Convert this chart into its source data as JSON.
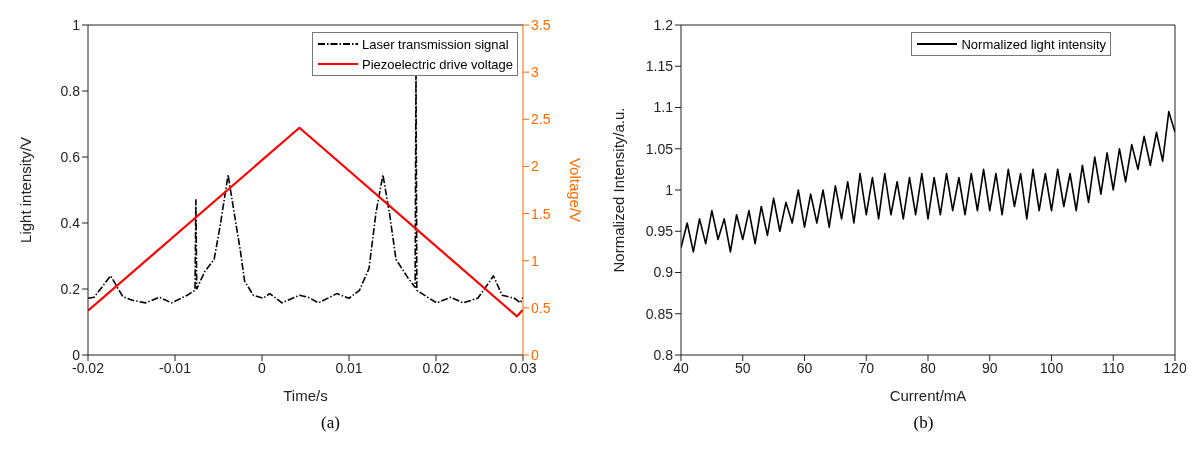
{
  "chart_data": [
    {
      "type": "line",
      "xlabel": "Time/s",
      "ylabel": "Light intensity/V",
      "y2label": "Voltage/V",
      "annotations": [
        "(a)"
      ],
      "xlim": [
        -0.02,
        0.03
      ],
      "xticks": [
        -0.02,
        -0.01,
        0,
        0.01,
        0.02,
        0.03
      ],
      "ylim": [
        0,
        1
      ],
      "yticks": [
        0,
        0.2,
        0.4,
        0.6,
        0.8,
        1
      ],
      "y2lim": [
        0,
        3.5
      ],
      "y2ticks": [
        0,
        0.5,
        1,
        1.5,
        2,
        2.5,
        3,
        3.5
      ],
      "grid": false,
      "legend": "top right",
      "series": [
        {
          "name": "Laser transmission signal",
          "color": "#000000",
          "line_style": "dashed",
          "x": [
            -0.02,
            -0.0193,
            -0.0174,
            -0.016,
            -0.0149,
            -0.0134,
            -0.0118,
            -0.0104,
            -0.0086,
            -0.0077,
            -0.0076,
            -0.0075,
            -0.0066,
            -0.0055,
            -0.0048,
            -0.0039,
            -0.0032,
            -0.0025,
            -0.002,
            -0.001,
            0.0001,
            0.0009,
            0.0023,
            0.0043,
            0.0053,
            0.0065,
            0.0086,
            0.01,
            0.0112,
            0.0123,
            0.0131,
            0.0139,
            0.0147,
            0.0154,
            0.0168,
            0.0176,
            0.0177,
            0.0178,
            0.0192,
            0.0201,
            0.0217,
            0.0231,
            0.0248,
            0.0257,
            0.0266,
            0.0276,
            0.029,
            0.0297,
            0.03
          ],
          "values": [
            0.172,
            0.175,
            0.24,
            0.177,
            0.166,
            0.158,
            0.175,
            0.158,
            0.181,
            0.196,
            0.47,
            0.2,
            0.252,
            0.29,
            0.393,
            0.546,
            0.431,
            0.318,
            0.224,
            0.181,
            0.172,
            0.186,
            0.158,
            0.181,
            0.175,
            0.158,
            0.186,
            0.172,
            0.196,
            0.262,
            0.431,
            0.546,
            0.421,
            0.29,
            0.233,
            0.205,
            0.85,
            0.196,
            0.172,
            0.158,
            0.175,
            0.158,
            0.172,
            0.205,
            0.24,
            0.181,
            0.172,
            0.158,
            0.175
          ]
        },
        {
          "name": "Piezoelectric drive voltage",
          "color": "#ff0000",
          "line_style": "solid",
          "axis": "y2",
          "x": [
            -0.02,
            0.0043,
            0.0293,
            0.03
          ],
          "values": [
            0.47,
            2.41,
            0.41,
            0.48
          ]
        }
      ]
    },
    {
      "type": "line",
      "xlabel": "Current/mA",
      "ylabel": "Normalized Intensity/a.u.",
      "annotations": [
        "(b)"
      ],
      "xlim": [
        40,
        120
      ],
      "xticks": [
        40,
        50,
        60,
        70,
        80,
        90,
        100,
        110,
        120
      ],
      "ylim": [
        0.8,
        1.2
      ],
      "yticks": [
        0.8,
        0.85,
        0.9,
        0.95,
        1,
        1.05,
        1.1,
        1.15,
        1.2
      ],
      "grid": false,
      "legend": "top right",
      "series": [
        {
          "name": "Normalized light intensity",
          "color": "#000000",
          "line_style": "solid",
          "x": [
            40,
            41,
            42,
            43,
            44,
            45,
            46,
            47,
            48,
            49,
            50,
            51,
            52,
            53,
            54,
            55,
            56,
            57,
            58,
            59,
            60,
            61,
            62,
            63,
            64,
            65,
            66,
            67,
            68,
            69,
            70,
            71,
            72,
            73,
            74,
            75,
            76,
            77,
            78,
            79,
            80,
            81,
            82,
            83,
            84,
            85,
            86,
            87,
            88,
            89,
            90,
            91,
            92,
            93,
            94,
            95,
            96,
            97,
            98,
            99,
            100,
            101,
            102,
            103,
            104,
            105,
            106,
            107,
            108,
            109,
            110,
            111,
            112,
            113,
            114,
            115,
            116,
            117,
            118,
            119,
            120
          ],
          "values": [
            0.93,
            0.96,
            0.925,
            0.965,
            0.935,
            0.975,
            0.94,
            0.965,
            0.925,
            0.97,
            0.94,
            0.975,
            0.935,
            0.98,
            0.945,
            0.99,
            0.95,
            0.985,
            0.96,
            1.0,
            0.955,
            0.995,
            0.96,
            1.0,
            0.955,
            1.005,
            0.965,
            1.01,
            0.96,
            1.02,
            0.97,
            1.015,
            0.965,
            1.02,
            0.97,
            1.01,
            0.965,
            1.015,
            0.97,
            1.02,
            0.965,
            1.015,
            0.97,
            1.02,
            0.975,
            1.015,
            0.97,
            1.02,
            0.975,
            1.025,
            0.975,
            1.02,
            0.97,
            1.025,
            0.98,
            1.02,
            0.965,
            1.025,
            0.975,
            1.02,
            0.975,
            1.025,
            0.98,
            1.02,
            0.975,
            1.03,
            0.985,
            1.04,
            0.995,
            1.045,
            1.0,
            1.05,
            1.01,
            1.055,
            1.025,
            1.065,
            1.03,
            1.07,
            1.035,
            1.095,
            1.07
          ]
        }
      ]
    }
  ]
}
